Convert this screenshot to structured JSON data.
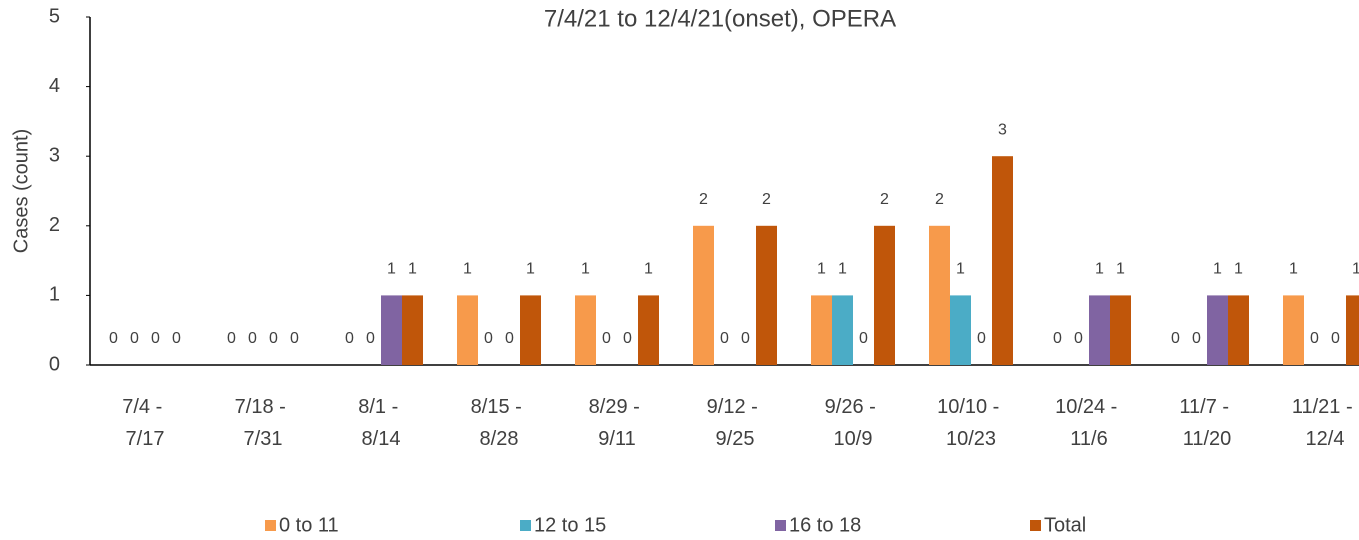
{
  "chart_data": {
    "type": "bar",
    "title": "7/4/21 to 12/4/21(onset), OPERA",
    "y_label": "Cases (count)",
    "categories": [
      "7/4 - 7/17",
      "7/18 - 7/31",
      "8/1 - 8/14",
      "8/15 - 8/28",
      "8/29 - 9/11",
      "9/12 - 9/25",
      "9/26 - 10/9",
      "10/10 - 10/23",
      "10/24 - 11/6",
      "11/7 - 11/20",
      "11/21 - 12/4"
    ],
    "series": [
      {
        "name": "0 to 11",
        "color": "#f79a4b",
        "values": [
          0,
          0,
          0,
          1,
          1,
          2,
          1,
          2,
          0,
          0,
          1
        ]
      },
      {
        "name": "12 to 15",
        "color": "#4bacc6",
        "values": [
          0,
          0,
          0,
          0,
          0,
          0,
          1,
          1,
          0,
          0,
          0
        ]
      },
      {
        "name": "16 to 18",
        "color": "#8064a2",
        "values": [
          0,
          0,
          1,
          0,
          0,
          0,
          0,
          0,
          1,
          1,
          0
        ]
      },
      {
        "name": "Total",
        "color": "#c0560a",
        "values": [
          0,
          0,
          1,
          1,
          1,
          2,
          2,
          3,
          1,
          1,
          1
        ]
      }
    ],
    "ylim": [
      0,
      5
    ],
    "yticks": [
      0,
      1,
      2,
      3,
      4,
      5
    ],
    "grid": false,
    "legend": "bottom"
  }
}
